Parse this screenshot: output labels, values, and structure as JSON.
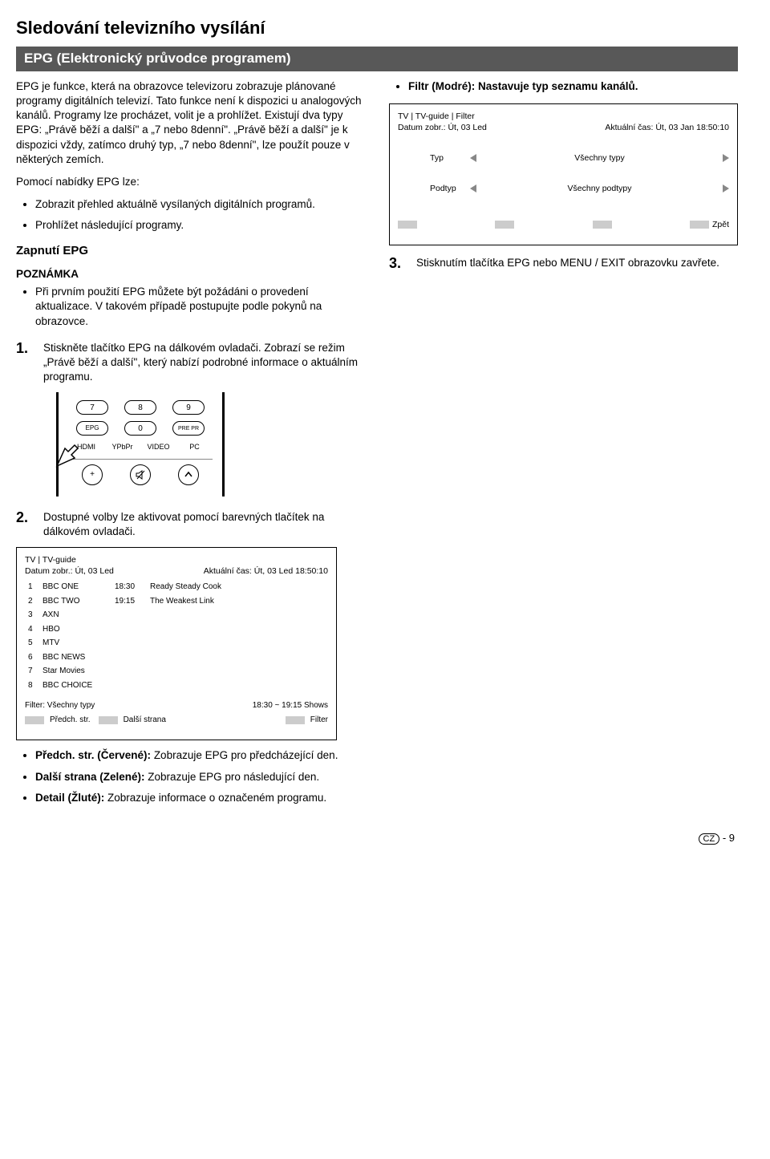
{
  "title": "Sledování televizního vysílání",
  "section": "EPG (Elektronický průvodce programem)",
  "intro": "EPG je funkce, která na obrazovce televizoru zobrazuje plánované programy digitálních televizí. Tato funkce není k dispozici u analogových kanálů. Programy lze procházet, volit je a prohlížet. Existují dva typy EPG: „Právě běží a další\" a „7 nebo 8denní\". „Právě běží a další\" je k dispozici vždy, zatímco druhý typ, „7 nebo 8denní\", lze použít pouze v některých zemích.",
  "epg_can_intro": "Pomocí nabídky EPG lze:",
  "epg_can": [
    "Zobrazit přehled aktuálně vysílaných digitálních programů.",
    "Prohlížet následující programy."
  ],
  "sub_on": "Zapnutí EPG",
  "note_hd": "POZNÁMKA",
  "note": "Při prvním použití EPG můžete být požádáni o provedení aktualizace. V takovém případě postupujte podle pokynů na obrazovce.",
  "step1": "Stiskněte tlačítko EPG na dálkovém ovladači. Zobrazí se režim „Právě běží a další\", který nabízí podrobné informace o aktuálním programu.",
  "step2": "Dostupné volby lze aktivovat pomocí barevných tlačítek na dálkovém ovladači.",
  "step3": "Stisknutím tlačítka EPG nebo MENU / EXIT obrazovku zavřete.",
  "remote": {
    "b7": "7",
    "b8": "8",
    "b9": "9",
    "b0": "0",
    "epg": "EPG",
    "prepr": "PRE PR",
    "hdmi": "HDMI",
    "ypbpr": "YPbPr",
    "video": "VIDEO",
    "pc": "PC"
  },
  "guide": {
    "path": "TV | TV-guide",
    "date": "Datum zobr.: Út, 03 Led",
    "now": "Aktuální čas: Út, 03 Led  18:50:10",
    "channels": [
      {
        "n": "1",
        "name": "BBC ONE",
        "t": "18:30",
        "p": "Ready Steady Cook"
      },
      {
        "n": "2",
        "name": "BBC TWO",
        "t": "19:15",
        "p": "The Weakest Link"
      },
      {
        "n": "3",
        "name": "AXN",
        "t": "",
        "p": ""
      },
      {
        "n": "4",
        "name": "HBO",
        "t": "",
        "p": ""
      },
      {
        "n": "5",
        "name": "MTV",
        "t": "",
        "p": ""
      },
      {
        "n": "6",
        "name": "BBC NEWS",
        "t": "",
        "p": ""
      },
      {
        "n": "7",
        "name": "Star Movies",
        "t": "",
        "p": ""
      },
      {
        "n": "8",
        "name": "BBC CHOICE",
        "t": "",
        "p": ""
      }
    ],
    "filter": "Filter: Všechny typy",
    "range": "18:30 ~ 19:15 Shows",
    "foot": {
      "red": "Předch. str.",
      "green": "Další strana",
      "blue": "Filter"
    }
  },
  "color_desc": [
    "Předch. str. (Červené): Zobrazuje EPG pro předcházející den.",
    "Další strana (Zelené): Zobrazuje EPG pro následující den.",
    "Detail (Žluté): Zobrazuje informace o označeném programu."
  ],
  "filter_bullet": "Filtr (Modré): Nastavuje typ seznamu kanálů.",
  "filter_osd": {
    "path": "TV | TV-guide | Filter",
    "date": "Datum zobr.: Út, 03 Led",
    "now": "Aktuální čas: Út, 03 Jan  18:50:10",
    "r1_lbl": "Typ",
    "r1_val": "Všechny typy",
    "r2_lbl": "Podtyp",
    "r2_val": "Všechny podtypy",
    "back": "Zpět"
  },
  "page": {
    "cz": "CZ",
    "num": "- 9"
  }
}
